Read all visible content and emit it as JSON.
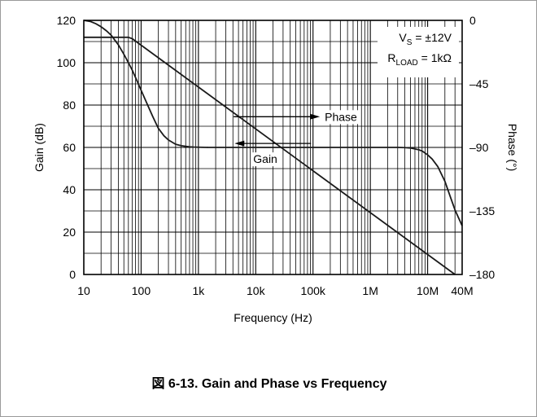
{
  "caption": "図 6-13. Gain and Phase vs Frequency",
  "chart_data": {
    "type": "line",
    "title": "",
    "xlabel": "Frequency (Hz)",
    "ylabel": "Gain (dB)",
    "y2label": "Phase (°)",
    "xscale": "log",
    "xlim": [
      10,
      40000000
    ],
    "ylim": [
      0,
      120
    ],
    "y2lim": [
      -180,
      0
    ],
    "grid": true,
    "x_ticks": [
      {
        "value": 10,
        "label": "10"
      },
      {
        "value": 100,
        "label": "100"
      },
      {
        "value": 1000,
        "label": "1k"
      },
      {
        "value": 10000,
        "label": "10k"
      },
      {
        "value": 100000,
        "label": "100k"
      },
      {
        "value": 1000000,
        "label": "1M"
      },
      {
        "value": 10000000,
        "label": "10M"
      },
      {
        "value": 40000000,
        "label": "40M"
      }
    ],
    "y_ticks": [
      {
        "value": 0,
        "label": "0"
      },
      {
        "value": 20,
        "label": "20"
      },
      {
        "value": 40,
        "label": "40"
      },
      {
        "value": 60,
        "label": "60"
      },
      {
        "value": 80,
        "label": "80"
      },
      {
        "value": 100,
        "label": "100"
      },
      {
        "value": 120,
        "label": "120"
      }
    ],
    "y2_ticks": [
      {
        "value": 0,
        "label": "0"
      },
      {
        "value": -45,
        "label": "–45"
      },
      {
        "value": -90,
        "label": "–90"
      },
      {
        "value": -135,
        "label": "–135"
      },
      {
        "value": -180,
        "label": "–180"
      }
    ],
    "series": [
      {
        "name": "Gain",
        "axis": "left",
        "x": [
          10,
          13,
          16,
          20,
          25,
          30,
          40,
          50,
          60,
          70,
          80,
          100,
          130,
          160,
          200,
          250,
          300,
          400,
          500,
          600,
          700,
          800,
          1000,
          1500,
          2000,
          5000,
          10000,
          100000,
          1000000,
          3000000,
          4000000,
          5000000,
          6000000,
          7000000,
          8000000,
          10000000,
          12000000,
          15000000,
          20000000,
          25000000,
          30000000,
          40000000
        ],
        "values": [
          120,
          119.5,
          118.5,
          117,
          115,
          113,
          108.5,
          104,
          100,
          96.5,
          93,
          87,
          80,
          74.5,
          69,
          65.5,
          63.5,
          61.5,
          60.8,
          60.5,
          60.3,
          60.2,
          60.1,
          60,
          60,
          60,
          60,
          60,
          60,
          60,
          59.9,
          59.7,
          59.3,
          58.9,
          58.3,
          56.5,
          54.5,
          51,
          44,
          36.5,
          30.5,
          23
        ]
      },
      {
        "name": "Phase",
        "axis": "right",
        "x": [
          10,
          60,
          70,
          30000000
        ],
        "values": [
          -12,
          -12,
          -13,
          -180
        ]
      }
    ],
    "annotations": [
      {
        "text": "Phase",
        "arrow": "right",
        "x": 150000,
        "y": 74.5
      },
      {
        "text": "Gain",
        "arrow": "left",
        "x": 4000,
        "y": 56.5
      }
    ],
    "conditions": {
      "vs_prefix": "V",
      "vs_sub": "S",
      "vs_value": " = ±12V",
      "rload_prefix": "R",
      "rload_sub": "LOAD",
      "rload_value": " = 1kΩ"
    }
  }
}
